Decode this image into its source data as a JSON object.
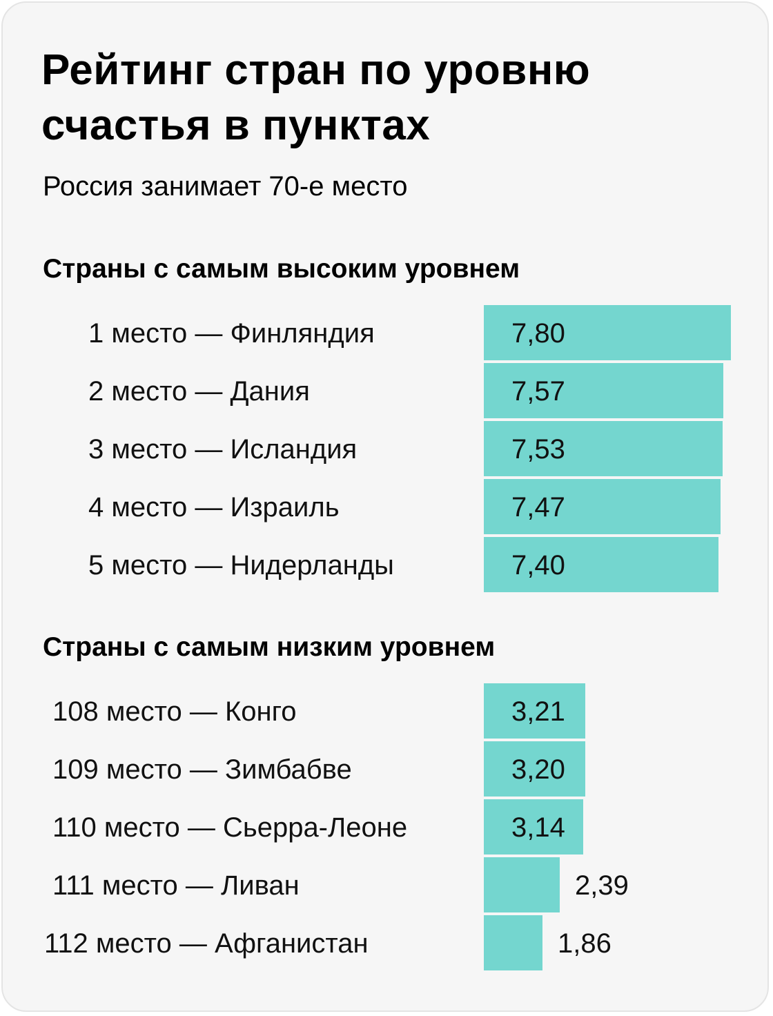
{
  "title": "Рейтинг стран по уровню\nсчастья в пунктах",
  "subtitle": "Россия занимает 70-е место",
  "colors": {
    "bar": "#74d6cf",
    "background": "#f6f6f6"
  },
  "chart_data": [
    {
      "type": "bar",
      "orientation": "horizontal",
      "title": "Страны с самым высоким уровнем",
      "categories": [
        "1 место — Финляндия",
        "2 место — Дания",
        "3 место — Исландия",
        "4 место — Израиль",
        "5 место — Нидерланды"
      ],
      "values": [
        7.8,
        7.57,
        7.53,
        7.47,
        7.4
      ],
      "value_labels": [
        "7,80",
        "7,57",
        "7,53",
        "7,47",
        "7,40"
      ],
      "xlim": [
        0,
        7.8
      ]
    },
    {
      "type": "bar",
      "orientation": "horizontal",
      "title": "Страны с самым низким уровнем",
      "categories": [
        "108 место — Конго",
        "109 место — Зимбабве",
        "110 место — Сьерра-Леоне",
        "111 место — Ливан",
        "112 место  — Афганистан"
      ],
      "values": [
        3.21,
        3.2,
        3.14,
        2.39,
        1.86
      ],
      "value_labels": [
        "3,21",
        "3,20",
        "3,14",
        "2,39",
        "1,86"
      ],
      "xlim": [
        0,
        7.8
      ]
    }
  ]
}
